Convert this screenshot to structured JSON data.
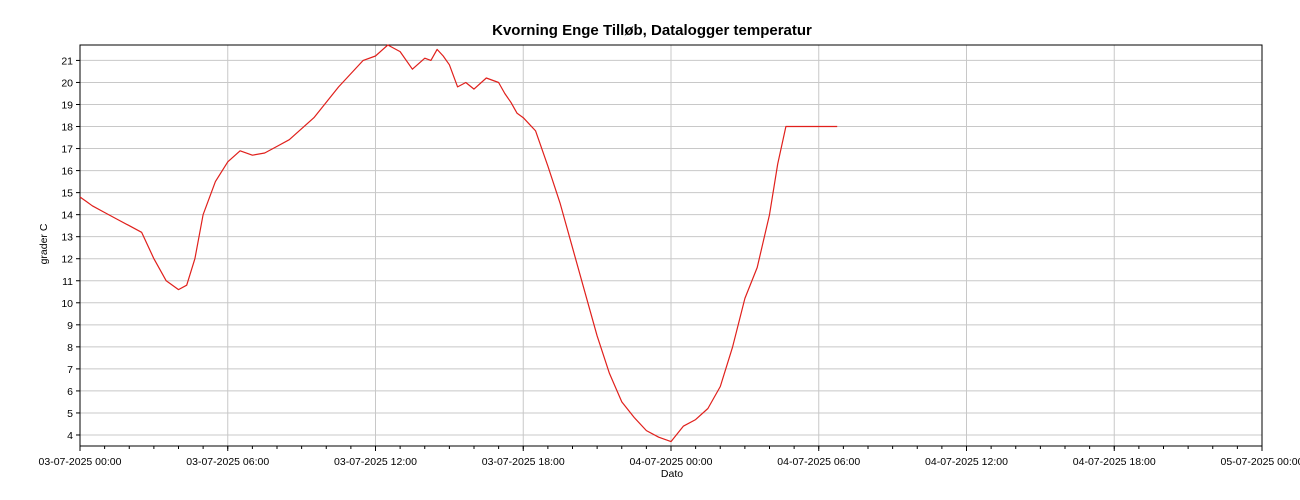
{
  "chart_data": {
    "type": "line",
    "title": "Kvorning Enge Tilløb, Datalogger temperatur",
    "xlabel": "Dato",
    "ylabel": "grader C",
    "x_ticks": [
      "03-07-2025 00:00",
      "03-07-2025 06:00",
      "03-07-2025 12:00",
      "03-07-2025 18:00",
      "04-07-2025 00:00",
      "04-07-2025 06:00",
      "04-07-2025 12:00",
      "04-07-2025 18:00",
      "05-07-2025 00:00"
    ],
    "y_ticks": [
      "4",
      "5",
      "6",
      "7",
      "8",
      "9",
      "10",
      "11",
      "12",
      "13",
      "14",
      "15",
      "16",
      "17",
      "18",
      "19",
      "20",
      "21"
    ],
    "xlim": [
      "03-07-2025 00:00",
      "05-07-2025 00:00"
    ],
    "ylim": [
      3.5,
      21.7
    ],
    "grid": true,
    "series_color": "#e0201c",
    "series": [
      {
        "x": [
          "03-07-2025 00:00",
          "03-07-2025 00:15",
          "03-07-2025 00:30",
          "03-07-2025 01:00",
          "03-07-2025 01:30",
          "03-07-2025 02:00",
          "03-07-2025 02:30",
          "03-07-2025 03:00",
          "03-07-2025 03:30",
          "03-07-2025 04:00",
          "03-07-2025 04:20",
          "03-07-2025 04:40",
          "03-07-2025 05:00",
          "03-07-2025 05:30",
          "03-07-2025 06:00",
          "03-07-2025 06:30",
          "03-07-2025 07:00",
          "03-07-2025 07:30",
          "03-07-2025 08:00",
          "03-07-2025 08:30",
          "03-07-2025 09:00",
          "03-07-2025 09:30",
          "03-07-2025 10:00",
          "03-07-2025 10:30",
          "03-07-2025 11:00",
          "03-07-2025 11:30",
          "03-07-2025 12:00",
          "03-07-2025 12:30",
          "03-07-2025 13:00",
          "03-07-2025 13:30",
          "03-07-2025 14:00",
          "03-07-2025 14:15",
          "03-07-2025 14:30",
          "03-07-2025 14:45",
          "03-07-2025 15:00",
          "03-07-2025 15:20",
          "03-07-2025 15:40",
          "03-07-2025 16:00",
          "03-07-2025 16:30",
          "03-07-2025 17:00",
          "03-07-2025 17:15",
          "03-07-2025 17:30",
          "03-07-2025 17:45",
          "03-07-2025 18:00",
          "03-07-2025 18:30",
          "03-07-2025 19:00",
          "03-07-2025 19:30",
          "03-07-2025 20:00",
          "03-07-2025 20:30",
          "03-07-2025 21:00",
          "03-07-2025 21:30",
          "03-07-2025 22:00",
          "03-07-2025 22:30",
          "03-07-2025 23:00",
          "03-07-2025 23:30",
          "04-07-2025 00:00",
          "04-07-2025 00:30",
          "04-07-2025 01:00",
          "04-07-2025 01:30",
          "04-07-2025 02:00",
          "04-07-2025 02:30",
          "04-07-2025 03:00",
          "04-07-2025 03:30",
          "04-07-2025 04:00",
          "04-07-2025 04:20",
          "04-07-2025 04:40",
          "04-07-2025 05:00",
          "04-07-2025 05:20",
          "04-07-2025 05:40",
          "04-07-2025 06:00",
          "04-07-2025 06:20",
          "04-07-2025 06:45"
        ],
        "values": [
          14.8,
          14.6,
          14.4,
          14.1,
          13.8,
          13.5,
          13.2,
          12.0,
          11.0,
          10.6,
          10.8,
          12.0,
          14.0,
          15.5,
          16.4,
          16.9,
          16.7,
          16.8,
          17.1,
          17.4,
          17.9,
          18.4,
          19.1,
          19.8,
          20.4,
          21.0,
          21.2,
          21.7,
          21.4,
          20.6,
          21.1,
          21.0,
          21.5,
          21.2,
          20.8,
          19.8,
          20.0,
          19.7,
          20.2,
          20.0,
          19.5,
          19.1,
          18.6,
          18.4,
          17.8,
          16.2,
          14.5,
          12.5,
          10.5,
          8.5,
          6.8,
          5.5,
          4.8,
          4.2,
          3.9,
          3.7,
          4.4,
          4.7,
          5.2,
          6.2,
          8.0,
          10.2,
          11.6,
          14.0,
          16.3,
          18.0,
          18.0,
          18.0,
          18.0,
          18.0,
          18.0,
          18.0
        ]
      }
    ]
  }
}
